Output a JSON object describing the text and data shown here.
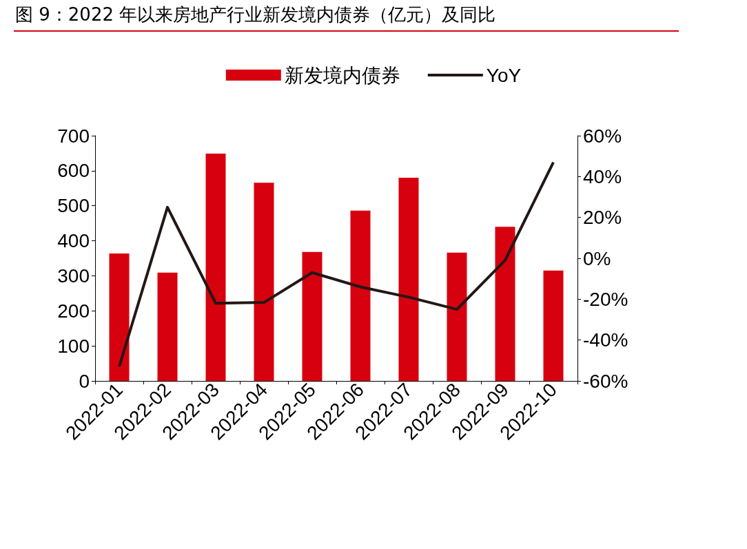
{
  "chart_data": {
    "type": "bar",
    "title": "图 9：2022 年以来房地产行业新发境内债券（亿元）及同比",
    "categories": [
      "2022-01",
      "2022-02",
      "2022-03",
      "2022-04",
      "2022-05",
      "2022-06",
      "2022-07",
      "2022-08",
      "2022-09",
      "2022-10"
    ],
    "series": [
      {
        "name": "新发境内债券",
        "color": "#d7000f",
        "values": [
          364,
          309,
          649,
          566,
          368,
          486,
          580,
          366,
          440,
          315
        ]
      },
      {
        "name": "YoY",
        "type": "line",
        "axis": "y2",
        "color": "#231815",
        "values": [
          -53,
          25,
          -22,
          -21.6,
          -7,
          -14,
          -19,
          -25,
          -1,
          47
        ]
      }
    ],
    "ylim": [
      0,
      700
    ],
    "yticks": [
      0,
      100,
      200,
      300,
      400,
      500,
      600,
      700
    ],
    "y2lim": [
      -60,
      60
    ],
    "y2ticks": [
      {
        "value": -60,
        "label": "-60%"
      },
      {
        "value": -40,
        "label": "-40%"
      },
      {
        "value": -20,
        "label": "-20%"
      },
      {
        "value": 0,
        "label": "0%"
      },
      {
        "value": 20,
        "label": "20%"
      },
      {
        "value": 40,
        "label": "40%"
      },
      {
        "value": 60,
        "label": "60%"
      }
    ],
    "legend": "top",
    "grid": false,
    "marker": "none",
    "line_style": "solid"
  }
}
